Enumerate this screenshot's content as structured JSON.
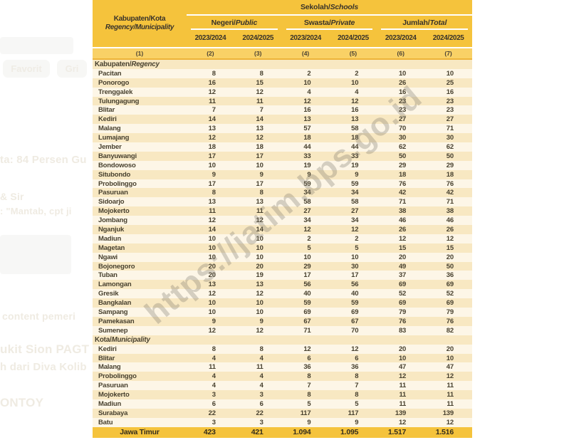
{
  "colors": {
    "header_gold": "#F5C33C",
    "column_number_band": "#F9D166",
    "row_stripe_dark": "#F8E8C2",
    "row_stripe_light": "#FDF6E7",
    "total_row_gold": "#F5C33C",
    "text_dark": "#48412F",
    "watermark_gray": "#807A6E"
  },
  "watermark": {
    "text": "https://jatim.bps.go.id"
  },
  "table": {
    "header": {
      "name_col": {
        "line1": "Kabupaten/Kota",
        "line2": "Regency/Municipality"
      },
      "top_group": {
        "id": "Sekolah/",
        "en": "Schools"
      },
      "groups": [
        {
          "id": "Negeri/",
          "en": "Public"
        },
        {
          "id": "Swasta/",
          "en": "Private"
        },
        {
          "id": "Jumlah/",
          "en": "Total"
        }
      ],
      "years": [
        "2023/2024",
        "2024/2025",
        "2023/2024",
        "2024/2025",
        "2023/2024",
        "2024/2025"
      ],
      "col_numbers": [
        "(1)",
        "(2)",
        "(3)",
        "(4)",
        "(5)",
        "(6)",
        "(7)"
      ]
    },
    "sections": [
      {
        "label": {
          "id": "Kabupaten/",
          "en": "Regency"
        },
        "rows": [
          {
            "name": "Pacitan",
            "values": [
              "8",
              "8",
              "2",
              "2",
              "10",
              "10"
            ]
          },
          {
            "name": "Ponorogo",
            "values": [
              "16",
              "15",
              "10",
              "10",
              "26",
              "25"
            ]
          },
          {
            "name": "Trenggalek",
            "values": [
              "12",
              "12",
              "4",
              "4",
              "16",
              "16"
            ]
          },
          {
            "name": "Tulungagung",
            "values": [
              "11",
              "11",
              "12",
              "12",
              "23",
              "23"
            ]
          },
          {
            "name": "Blitar",
            "values": [
              "7",
              "7",
              "16",
              "16",
              "23",
              "23"
            ]
          },
          {
            "name": "Kediri",
            "values": [
              "14",
              "14",
              "13",
              "13",
              "27",
              "27"
            ]
          },
          {
            "name": "Malang",
            "values": [
              "13",
              "13",
              "57",
              "58",
              "70",
              "71"
            ]
          },
          {
            "name": "Lumajang",
            "values": [
              "12",
              "12",
              "18",
              "18",
              "30",
              "30"
            ]
          },
          {
            "name": "Jember",
            "values": [
              "18",
              "18",
              "44",
              "44",
              "62",
              "62"
            ]
          },
          {
            "name": "Banyuwangi",
            "values": [
              "17",
              "17",
              "33",
              "33",
              "50",
              "50"
            ]
          },
          {
            "name": "Bondowoso",
            "values": [
              "10",
              "10",
              "19",
              "19",
              "29",
              "29"
            ]
          },
          {
            "name": "Situbondo",
            "values": [
              "9",
              "9",
              "9",
              "9",
              "18",
              "18"
            ]
          },
          {
            "name": "Probolinggo",
            "values": [
              "17",
              "17",
              "59",
              "59",
              "76",
              "76"
            ]
          },
          {
            "name": "Pasuruan",
            "values": [
              "8",
              "8",
              "34",
              "34",
              "42",
              "42"
            ]
          },
          {
            "name": "Sidoarjo",
            "values": [
              "13",
              "13",
              "58",
              "58",
              "71",
              "71"
            ]
          },
          {
            "name": "Mojokerto",
            "values": [
              "11",
              "11",
              "27",
              "27",
              "38",
              "38"
            ]
          },
          {
            "name": "Jombang",
            "values": [
              "12",
              "12",
              "34",
              "34",
              "46",
              "46"
            ]
          },
          {
            "name": "Nganjuk",
            "values": [
              "14",
              "14",
              "12",
              "12",
              "26",
              "26"
            ]
          },
          {
            "name": "Madiun",
            "values": [
              "10",
              "10",
              "2",
              "2",
              "12",
              "12"
            ]
          },
          {
            "name": "Magetan",
            "values": [
              "10",
              "10",
              "5",
              "5",
              "15",
              "15"
            ]
          },
          {
            "name": "Ngawi",
            "values": [
              "10",
              "10",
              "10",
              "10",
              "20",
              "20"
            ]
          },
          {
            "name": "Bojonegoro",
            "values": [
              "20",
              "20",
              "29",
              "30",
              "49",
              "50"
            ]
          },
          {
            "name": "Tuban",
            "values": [
              "20",
              "19",
              "17",
              "17",
              "37",
              "36"
            ]
          },
          {
            "name": "Lamongan",
            "values": [
              "13",
              "13",
              "56",
              "56",
              "69",
              "69"
            ]
          },
          {
            "name": "Gresik",
            "values": [
              "12",
              "12",
              "40",
              "40",
              "52",
              "52"
            ]
          },
          {
            "name": "Bangkalan",
            "values": [
              "10",
              "10",
              "59",
              "59",
              "69",
              "69"
            ]
          },
          {
            "name": "Sampang",
            "values": [
              "10",
              "10",
              "69",
              "69",
              "79",
              "79"
            ]
          },
          {
            "name": "Pamekasan",
            "values": [
              "9",
              "9",
              "67",
              "67",
              "76",
              "76"
            ]
          },
          {
            "name": "Sumenep",
            "values": [
              "12",
              "12",
              "71",
              "70",
              "83",
              "82"
            ]
          }
        ]
      },
      {
        "label": {
          "id": "Kota/",
          "en": "Municipality"
        },
        "rows": [
          {
            "name": "Kediri",
            "values": [
              "8",
              "8",
              "12",
              "12",
              "20",
              "20"
            ]
          },
          {
            "name": "Blitar",
            "values": [
              "4",
              "4",
              "6",
              "6",
              "10",
              "10"
            ]
          },
          {
            "name": "Malang",
            "values": [
              "11",
              "11",
              "36",
              "36",
              "47",
              "47"
            ]
          },
          {
            "name": "Probolinggo",
            "values": [
              "4",
              "4",
              "8",
              "8",
              "12",
              "12"
            ]
          },
          {
            "name": "Pasuruan",
            "values": [
              "4",
              "4",
              "7",
              "7",
              "11",
              "11"
            ]
          },
          {
            "name": "Mojokerto",
            "values": [
              "3",
              "3",
              "8",
              "8",
              "11",
              "11"
            ]
          },
          {
            "name": "Madiun",
            "values": [
              "6",
              "6",
              "5",
              "5",
              "11",
              "11"
            ]
          },
          {
            "name": "Surabaya",
            "values": [
              "22",
              "22",
              "117",
              "117",
              "139",
              "139"
            ]
          },
          {
            "name": "Batu",
            "values": [
              "3",
              "3",
              "9",
              "9",
              "12",
              "12"
            ]
          }
        ]
      }
    ],
    "total": {
      "label": "Jawa Timur",
      "values": [
        "423",
        "421",
        "1.094",
        "1.095",
        "1.517",
        "1.516"
      ]
    }
  },
  "left_margin": {
    "pills": [
      "Favorit",
      "Gri"
    ],
    "fragments": [
      "ta: 84 Persen Gu",
      "& Sir",
      ": \"Mantab, cpt ji",
      "content pemeri",
      "ukit Sion PAGT",
      "h dari Diva Kolib",
      "ONTOY"
    ]
  }
}
